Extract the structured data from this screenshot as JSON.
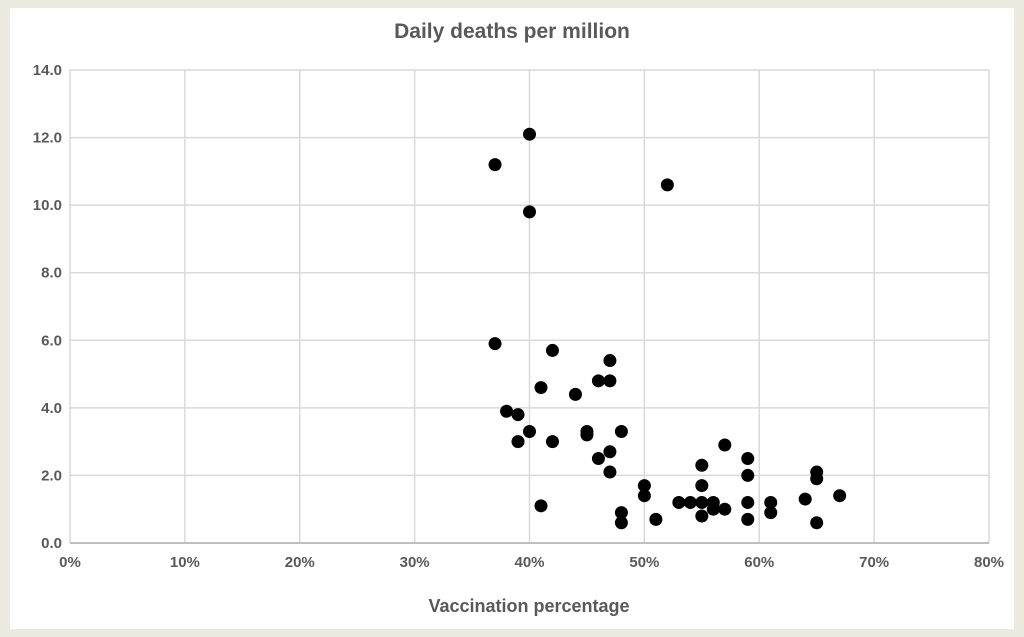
{
  "chart_data": {
    "type": "scatter",
    "title": "Daily deaths per million",
    "xlabel": "Vaccination percentage",
    "ylabel": "",
    "xlim": [
      0,
      80
    ],
    "ylim": [
      0,
      14
    ],
    "grid": true,
    "legend": "none",
    "x_ticks": [
      "0%",
      "10%",
      "20%",
      "30%",
      "40%",
      "50%",
      "60%",
      "70%",
      "80%"
    ],
    "y_ticks": [
      "0.0",
      "2.0",
      "4.0",
      "6.0",
      "8.0",
      "10.0",
      "12.0",
      "14.0"
    ],
    "marker_color": "#000000",
    "points": [
      [
        37,
        11.2
      ],
      [
        40,
        12.1
      ],
      [
        40,
        9.8
      ],
      [
        52,
        10.6
      ],
      [
        37,
        5.9
      ],
      [
        42,
        5.7
      ],
      [
        47,
        5.4
      ],
      [
        46,
        4.8
      ],
      [
        47,
        4.8
      ],
      [
        41,
        4.6
      ],
      [
        44,
        4.4
      ],
      [
        38,
        3.9
      ],
      [
        39,
        3.8
      ],
      [
        40,
        3.3
      ],
      [
        45,
        3.3
      ],
      [
        45,
        3.2
      ],
      [
        48,
        3.3
      ],
      [
        39,
        3.0
      ],
      [
        42,
        3.0
      ],
      [
        47,
        2.7
      ],
      [
        46,
        2.5
      ],
      [
        47,
        2.1
      ],
      [
        41,
        1.1
      ],
      [
        48,
        0.9
      ],
      [
        48,
        0.6
      ],
      [
        51,
        0.7
      ],
      [
        50,
        1.7
      ],
      [
        50,
        1.4
      ],
      [
        53,
        1.2
      ],
      [
        54,
        1.2
      ],
      [
        55,
        1.2
      ],
      [
        56,
        1.2
      ],
      [
        55,
        0.8
      ],
      [
        56,
        1.0
      ],
      [
        57,
        1.0
      ],
      [
        55,
        1.7
      ],
      [
        55,
        2.3
      ],
      [
        57,
        2.9
      ],
      [
        59,
        2.5
      ],
      [
        59,
        2.0
      ],
      [
        59,
        1.2
      ],
      [
        59,
        0.7
      ],
      [
        61,
        1.2
      ],
      [
        61,
        0.9
      ],
      [
        64,
        1.3
      ],
      [
        65,
        2.1
      ],
      [
        65,
        1.9
      ],
      [
        65,
        0.6
      ],
      [
        67,
        1.4
      ]
    ]
  }
}
